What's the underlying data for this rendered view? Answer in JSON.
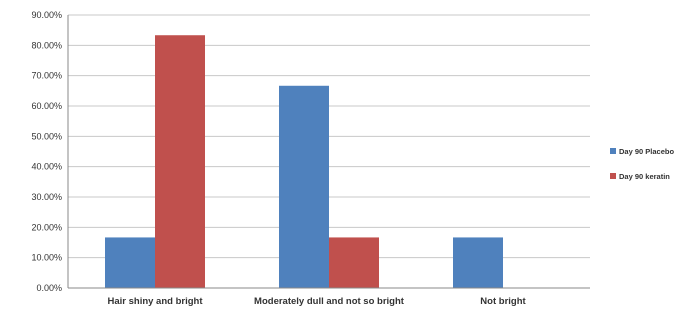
{
  "chart_data": {
    "type": "bar",
    "title": "",
    "xlabel": "",
    "ylabel": "",
    "categories": [
      "Hair shiny and bright",
      "Moderately dull and not so bright",
      "Not bright"
    ],
    "series": [
      {
        "name": "Day 90 Placebo",
        "color": "#4f81bd",
        "values": [
          16.67,
          66.67,
          16.67
        ]
      },
      {
        "name": "Day 90 keratin",
        "color": "#c0504d",
        "values": [
          83.33,
          16.67,
          0
        ]
      }
    ],
    "ylim": [
      0,
      90
    ],
    "ytick_step": 10,
    "ytick_format": "percent_2dp",
    "grid": true,
    "legend": "right"
  }
}
